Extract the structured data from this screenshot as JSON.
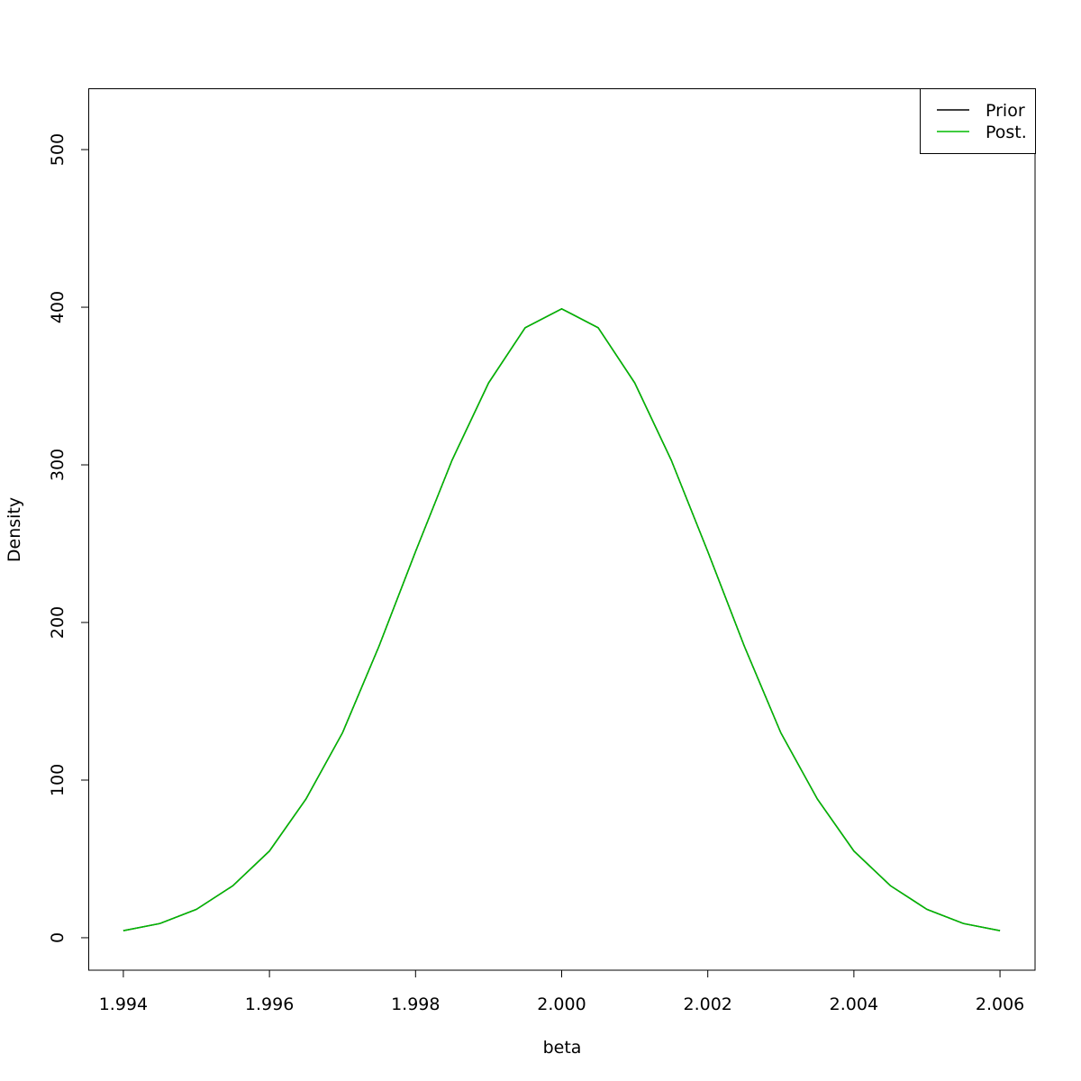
{
  "chart_data": {
    "type": "line",
    "x_label": "beta",
    "y_label": "Density",
    "x": [
      1.994,
      1.9945,
      1.995,
      1.9955,
      1.996,
      1.9965,
      1.997,
      1.9975,
      1.998,
      1.9985,
      1.999,
      1.9995,
      2.0,
      2.0005,
      2.001,
      2.0015,
      2.002,
      2.0025,
      2.003,
      2.0035,
      2.004,
      2.0045,
      2.005,
      2.0055,
      2.006
    ],
    "series": [
      {
        "name": "Prior",
        "color": "#000000",
        "values": [
          4.5,
          9,
          18,
          33,
          55,
          88,
          130,
          185,
          245,
          303,
          352,
          387,
          399,
          387,
          352,
          303,
          245,
          185,
          130,
          88,
          55,
          33,
          18,
          9,
          4.5
        ]
      },
      {
        "name": "Post.",
        "color": "#00bb00",
        "values": [
          4.5,
          9,
          18,
          33,
          55,
          88,
          130,
          185,
          245,
          303,
          352,
          387,
          399,
          387,
          352,
          303,
          245,
          185,
          130,
          88,
          55,
          33,
          18,
          9,
          4.5
        ]
      }
    ],
    "xlim": [
      1.99352,
      2.00648
    ],
    "ylim": [
      -20.6,
      538.9
    ],
    "xticks": [
      1.994,
      1.996,
      1.998,
      {
        "value": 2,
        "label": "2.000"
      },
      2.002,
      2.004,
      2.006
    ],
    "yticks": [
      0,
      100,
      200,
      300,
      400,
      500
    ],
    "legend": "top-right"
  }
}
